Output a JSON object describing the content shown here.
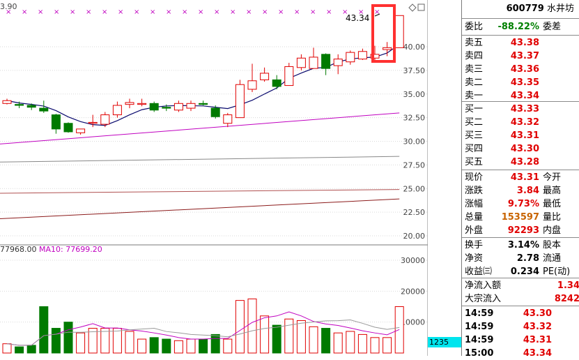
{
  "header": {
    "code": "600779",
    "name": "水井坊"
  },
  "price_axis": [
    "40.00",
    "37.50",
    "35.00",
    "32.50",
    "30.00",
    "27.50",
    "25.00",
    "22.50",
    "20.00"
  ],
  "volume_axis": [
    "30000",
    "20000",
    "10000"
  ],
  "top_price_label": "3.90",
  "last_price_tag": "43.34",
  "volume_legend": {
    "prefix": "77968.00",
    "ma10": "MA10: 77699.20"
  },
  "volume_badge": "1235",
  "weibi": {
    "label": "委比",
    "value": "-88.22%",
    "label2": "委差"
  },
  "asks": [
    {
      "label": "卖五",
      "price": "43.38"
    },
    {
      "label": "卖四",
      "price": "43.37"
    },
    {
      "label": "卖三",
      "price": "43.36"
    },
    {
      "label": "卖二",
      "price": "43.35"
    },
    {
      "label": "卖一",
      "price": "43.34"
    }
  ],
  "bids": [
    {
      "label": "买一",
      "price": "43.33"
    },
    {
      "label": "买二",
      "price": "43.32"
    },
    {
      "label": "买三",
      "price": "43.31"
    },
    {
      "label": "买四",
      "price": "43.30"
    },
    {
      "label": "买五",
      "price": "43.28"
    }
  ],
  "quote": [
    {
      "label": "现价",
      "value": "43.31",
      "color": "red",
      "label2": "今开"
    },
    {
      "label": "涨跌",
      "value": "3.84",
      "color": "red",
      "label2": "最高"
    },
    {
      "label": "涨幅",
      "value": "9.73%",
      "color": "red",
      "label2": "最低"
    },
    {
      "label": "总量",
      "value": "153597",
      "color": "orange",
      "label2": "量比"
    },
    {
      "label": "外盘",
      "value": "92293",
      "color": "red",
      "label2": "内盘"
    }
  ],
  "stats": [
    {
      "label": "换手",
      "value": "3.14%",
      "label2": "股本"
    },
    {
      "label": "净资",
      "value": "2.78",
      "label2": "流通"
    },
    {
      "label": "收益㈢",
      "value": "0.234",
      "label2": "PE(动)"
    }
  ],
  "flows": [
    {
      "label": "净流入额",
      "value": "1.34"
    },
    {
      "label": "大宗流入",
      "value": "8242"
    }
  ],
  "ticks": [
    {
      "time": "14:59",
      "price": "43.30"
    },
    {
      "time": "14:59",
      "price": "43.32"
    },
    {
      "time": "14:59",
      "price": "43.31"
    },
    {
      "time": "15:00",
      "price": "43.34"
    }
  ],
  "colors": {
    "up": "#e00000",
    "down": "#007a00",
    "ma5": "#0a0a6e",
    "ma10": "#c000c0",
    "ma20": "#888888",
    "ma60": "#8b1a1a",
    "highlight": "#ff3030"
  },
  "chart_data": {
    "type": "candlestick",
    "price_ylim": [
      20.0,
      42.5
    ],
    "volume_ylim": [
      0,
      35000
    ],
    "candles": [
      {
        "o": 34.0,
        "c": 34.3,
        "h": 34.5,
        "l": 33.9,
        "v": 3000
      },
      {
        "o": 33.9,
        "c": 33.8,
        "h": 34.2,
        "l": 33.5,
        "v": 2000
      },
      {
        "o": 33.8,
        "c": 33.6,
        "h": 34.0,
        "l": 33.3,
        "v": 2500
      },
      {
        "o": 33.5,
        "c": 33.2,
        "h": 34.3,
        "l": 33.0,
        "v": 15000
      },
      {
        "o": 32.8,
        "c": 31.3,
        "h": 32.9,
        "l": 30.8,
        "v": 8000
      },
      {
        "o": 31.9,
        "c": 31.0,
        "h": 32.0,
        "l": 30.9,
        "v": 10000
      },
      {
        "o": 30.9,
        "c": 31.3,
        "h": 31.3,
        "l": 30.7,
        "v": 6500
      },
      {
        "o": 31.9,
        "c": 32.0,
        "h": 32.8,
        "l": 31.5,
        "v": 8000
      },
      {
        "o": 31.8,
        "c": 32.8,
        "h": 33.1,
        "l": 31.5,
        "v": 8000
      },
      {
        "o": 32.8,
        "c": 33.8,
        "h": 34.2,
        "l": 32.5,
        "v": 8000
      },
      {
        "o": 33.9,
        "c": 34.1,
        "h": 34.5,
        "l": 33.5,
        "v": 7000
      },
      {
        "o": 33.9,
        "c": 34.0,
        "h": 34.5,
        "l": 33.7,
        "v": 4500
      },
      {
        "o": 34.0,
        "c": 33.3,
        "h": 34.2,
        "l": 33.1,
        "v": 5000
      },
      {
        "o": 33.6,
        "c": 33.5,
        "h": 33.9,
        "l": 33.2,
        "v": 4500
      },
      {
        "o": 33.3,
        "c": 34.0,
        "h": 34.3,
        "l": 33.1,
        "v": 4000
      },
      {
        "o": 33.5,
        "c": 34.0,
        "h": 34.3,
        "l": 33.2,
        "v": 4500
      },
      {
        "o": 34.0,
        "c": 33.9,
        "h": 34.3,
        "l": 33.8,
        "v": 4500
      },
      {
        "o": 33.5,
        "c": 32.6,
        "h": 33.8,
        "l": 32.4,
        "v": 6000
      },
      {
        "o": 31.9,
        "c": 32.8,
        "h": 33.0,
        "l": 31.5,
        "v": 4500
      },
      {
        "o": 32.5,
        "c": 36.0,
        "h": 36.5,
        "l": 32.5,
        "v": 17000
      },
      {
        "o": 35.5,
        "c": 36.4,
        "h": 38.2,
        "l": 35.2,
        "v": 17500
      },
      {
        "o": 36.5,
        "c": 37.2,
        "h": 37.8,
        "l": 36.3,
        "v": 12000
      },
      {
        "o": 36.5,
        "c": 35.8,
        "h": 37.0,
        "l": 35.5,
        "v": 9000
      },
      {
        "o": 35.9,
        "c": 37.9,
        "h": 38.3,
        "l": 35.9,
        "v": 11000
      },
      {
        "o": 37.8,
        "c": 38.8,
        "h": 39.2,
        "l": 37.5,
        "v": 10500
      },
      {
        "o": 37.7,
        "c": 38.9,
        "h": 39.9,
        "l": 37.7,
        "v": 8500
      },
      {
        "o": 39.2,
        "c": 37.7,
        "h": 39.3,
        "l": 37.0,
        "v": 8000
      },
      {
        "o": 38.0,
        "c": 38.7,
        "h": 39.2,
        "l": 37.1,
        "v": 6500
      },
      {
        "o": 38.4,
        "c": 39.4,
        "h": 39.6,
        "l": 38.1,
        "v": 7000
      },
      {
        "o": 38.7,
        "c": 39.5,
        "h": 39.8,
        "l": 38.6,
        "v": 6000
      },
      {
        "o": 38.8,
        "c": 39.2,
        "h": 40.1,
        "l": 38.6,
        "v": 5000
      },
      {
        "o": 39.7,
        "c": 39.9,
        "h": 40.5,
        "l": 39.0,
        "v": 5000
      },
      {
        "o": 39.9,
        "c": 43.3,
        "h": 43.3,
        "l": 39.9,
        "v": 15000
      }
    ]
  }
}
